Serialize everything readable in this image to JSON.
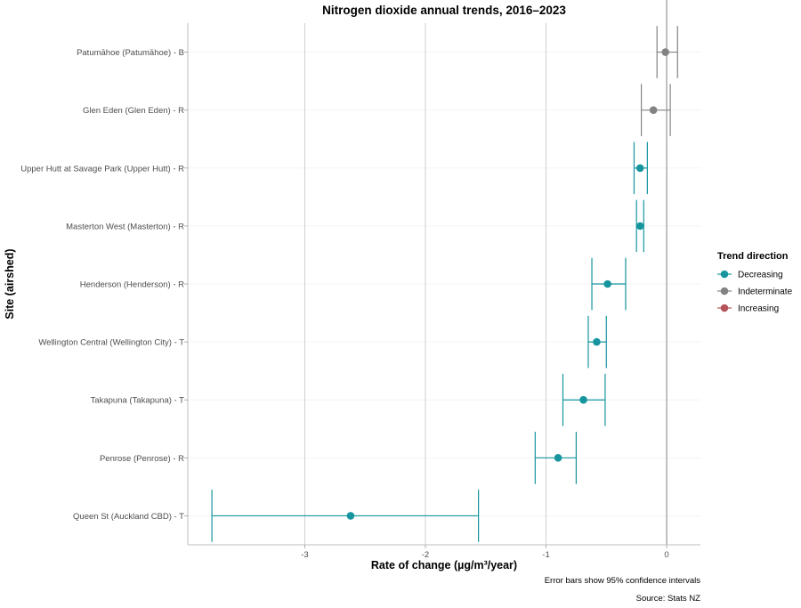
{
  "chart_data": {
    "type": "scatter",
    "title": "Nitrogen dioxide annual trends, 2016–2023",
    "xlabel": "Rate of change (µg/m³/year)",
    "ylabel": "Site (airshed)",
    "xlim": [
      -3.97,
      0.28
    ],
    "xticks": [
      -3,
      -2,
      -1,
      0
    ],
    "xtick_labels": [
      "-3",
      "-2",
      "-1",
      "0"
    ],
    "grid": true,
    "reference_line_x": 0,
    "legend": {
      "title": "Trend direction",
      "position": "right",
      "entries": [
        {
          "name": "Decreasing",
          "color": "#16959f"
        },
        {
          "name": "Indeterminate",
          "color": "#838383"
        },
        {
          "name": "Increasing",
          "color": "#b5535b"
        }
      ]
    },
    "sites": [
      {
        "label": "Patumāhoe (Patumāhoe) - B",
        "value": -0.01,
        "ci": [
          -0.08,
          0.09
        ],
        "trend": "Indeterminate"
      },
      {
        "label": "Glen Eden (Glen Eden) - R",
        "value": -0.11,
        "ci": [
          -0.21,
          0.03
        ],
        "trend": "Indeterminate"
      },
      {
        "label": "Upper Hutt at Savage Park (Upper Hutt) - R",
        "value": -0.22,
        "ci": [
          -0.27,
          -0.16
        ],
        "trend": "Decreasing"
      },
      {
        "label": "Masterton West (Masterton) - R",
        "value": -0.22,
        "ci": [
          -0.25,
          -0.19
        ],
        "trend": "Decreasing"
      },
      {
        "label": "Henderson (Henderson) - R",
        "value": -0.49,
        "ci": [
          -0.62,
          -0.34
        ],
        "trend": "Decreasing"
      },
      {
        "label": "Wellington Central (Wellington City) - T",
        "value": -0.58,
        "ci": [
          -0.65,
          -0.5
        ],
        "trend": "Decreasing"
      },
      {
        "label": "Takapuna (Takapuna) - T",
        "value": -0.69,
        "ci": [
          -0.86,
          -0.51
        ],
        "trend": "Decreasing"
      },
      {
        "label": "Penrose (Penrose) - R",
        "value": -0.9,
        "ci": [
          -1.09,
          -0.75
        ],
        "trend": "Decreasing"
      },
      {
        "label": "Queen St (Auckland CBD) - T",
        "value": -2.62,
        "ci": [
          -3.77,
          -1.56
        ],
        "trend": "Decreasing"
      }
    ],
    "captions": [
      "Error bars show 95% confidence intervals",
      "Source: Stats NZ"
    ]
  }
}
